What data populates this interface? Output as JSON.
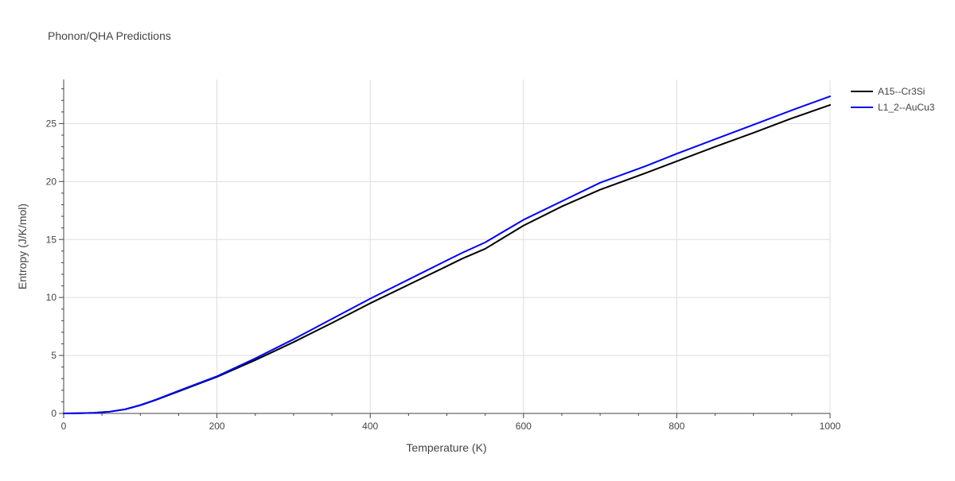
{
  "chart_data": {
    "type": "line",
    "title": "Phonon/QHA Predictions",
    "xlabel": "Temperature (K)",
    "ylabel": "Entropy (J/K/mol)",
    "xlim": [
      0,
      1000
    ],
    "ylim": [
      0,
      28.8
    ],
    "xticks": [
      0,
      200,
      400,
      600,
      800,
      1000
    ],
    "yticks": [
      0,
      5,
      10,
      15,
      20,
      25
    ],
    "grid": true,
    "legend_position": "top-right",
    "series": [
      {
        "name": "A15--Cr3Si",
        "color": "#000000",
        "x": [
          0,
          20,
          40,
          50,
          60,
          80,
          100,
          120,
          150,
          200,
          250,
          300,
          350,
          400,
          450,
          500,
          520,
          550,
          600,
          650,
          700,
          760,
          800,
          850,
          900,
          950,
          1000
        ],
        "y": [
          0,
          0.02,
          0.05,
          0.1,
          0.15,
          0.35,
          0.7,
          1.15,
          1.9,
          3.15,
          4.6,
          6.15,
          7.8,
          9.5,
          11.1,
          12.7,
          13.35,
          14.2,
          16.2,
          17.85,
          19.3,
          20.75,
          21.75,
          23.0,
          24.2,
          25.45,
          26.6
        ]
      },
      {
        "name": "L1_2--AuCu3",
        "color": "#0000ff",
        "x": [
          0,
          20,
          40,
          50,
          60,
          80,
          100,
          120,
          150,
          200,
          250,
          300,
          350,
          400,
          450,
          500,
          520,
          550,
          600,
          650,
          700,
          760,
          800,
          850,
          900,
          950,
          1000
        ],
        "y": [
          0,
          0.02,
          0.05,
          0.1,
          0.15,
          0.35,
          0.72,
          1.18,
          1.95,
          3.2,
          4.75,
          6.4,
          8.15,
          9.9,
          11.55,
          13.2,
          13.85,
          14.75,
          16.7,
          18.3,
          19.9,
          21.35,
          22.4,
          23.65,
          24.9,
          26.15,
          27.35
        ]
      }
    ]
  }
}
